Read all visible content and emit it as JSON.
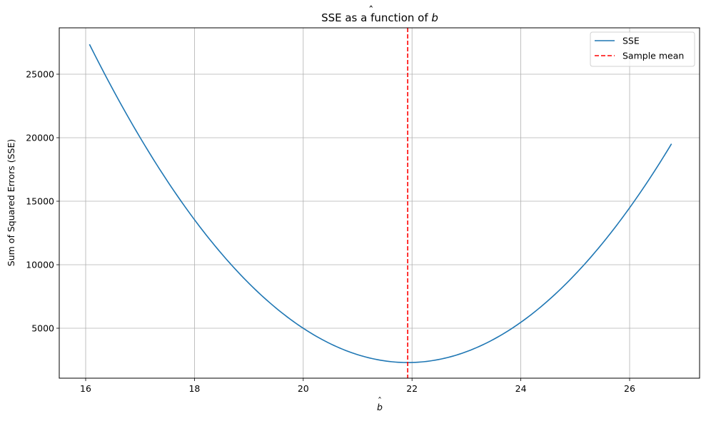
{
  "chart_data": {
    "type": "line",
    "title": "SSE as a function of b̂",
    "title_prefix": "SSE as a function of ",
    "title_symbol": "b",
    "xlabel": "b̂",
    "xlabel_symbol": "b",
    "ylabel": "Sum of Squared Errors (SSE)",
    "xlim": [
      15.5,
      27.3
    ],
    "ylim": [
      1100,
      28500
    ],
    "grid": true,
    "legend_position": "upper right",
    "x_ticks": [
      16,
      18,
      20,
      22,
      24,
      26
    ],
    "x_tick_labels": [
      "16",
      "18",
      "20",
      "22",
      "24",
      "26"
    ],
    "y_ticks": [
      5000,
      10000,
      15000,
      20000,
      25000
    ],
    "y_tick_labels": [
      "5000",
      "10000",
      "15000",
      "20000",
      "25000"
    ],
    "series": [
      {
        "name": "SSE",
        "color": "#1f77b4",
        "style": "solid",
        "x": [
          16.07,
          16.5,
          17.0,
          17.5,
          18.0,
          18.5,
          19.0,
          19.5,
          20.0,
          20.5,
          21.0,
          21.5,
          21.92,
          22.5,
          23.0,
          23.5,
          24.0,
          24.5,
          25.0,
          25.5,
          26.0,
          26.5,
          26.77
        ],
        "y": [
          27350,
          23800,
          20000,
          16600,
          13550,
          10860,
          8540,
          6590,
          5000,
          3780,
          2920,
          2430,
          2300,
          2550,
          3150,
          4130,
          5470,
          7160,
          9240,
          11680,
          14480,
          17650,
          19520
        ]
      },
      {
        "name": "Sample mean",
        "color": "#ff0000",
        "style": "dashed",
        "x_value": 21.92
      }
    ],
    "legend": [
      "SSE",
      "Sample mean"
    ]
  }
}
